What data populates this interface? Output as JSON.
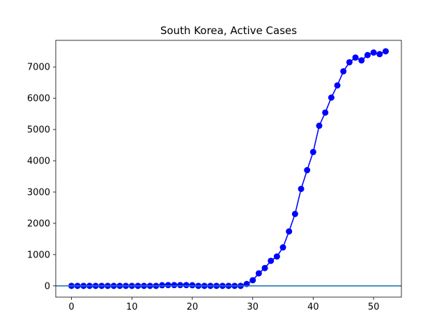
{
  "chart_data": {
    "type": "line",
    "title": "South Korea, Active Cases",
    "xlabel": "",
    "ylabel": "",
    "xlim": [
      -2.6,
      54.6
    ],
    "ylim": [
      -360,
      7850
    ],
    "xticks": [
      0,
      10,
      20,
      30,
      40,
      50
    ],
    "yticks": [
      0,
      1000,
      2000,
      3000,
      4000,
      5000,
      6000,
      7000
    ],
    "grid": false,
    "legend": "none",
    "reference_lines": [
      {
        "orientation": "horizontal",
        "y": 0,
        "color": "#1f77b4"
      }
    ],
    "series": [
      {
        "color": "#0000ff",
        "marker": "circle",
        "x": [
          0,
          1,
          2,
          3,
          4,
          5,
          6,
          7,
          8,
          9,
          10,
          11,
          12,
          13,
          14,
          15,
          16,
          17,
          18,
          19,
          20,
          21,
          22,
          23,
          24,
          25,
          26,
          27,
          28,
          29,
          30,
          31,
          32,
          33,
          34,
          35,
          36,
          37,
          38,
          39,
          40,
          41,
          42,
          43,
          44,
          45,
          46,
          47,
          48,
          49,
          50,
          51,
          52
        ],
        "y": [
          0,
          0,
          0,
          0,
          0,
          0,
          0,
          0,
          0,
          0,
          0,
          0,
          0,
          0,
          0,
          20,
          25,
          25,
          25,
          25,
          20,
          0,
          0,
          0,
          0,
          0,
          0,
          0,
          0,
          60,
          180,
          400,
          570,
          800,
          940,
          1230,
          1740,
          2300,
          3100,
          3700,
          4280,
          5120,
          5540,
          6020,
          6410,
          6860,
          7150,
          7300,
          7210,
          7380,
          7460,
          7410,
          7500
        ]
      }
    ]
  }
}
